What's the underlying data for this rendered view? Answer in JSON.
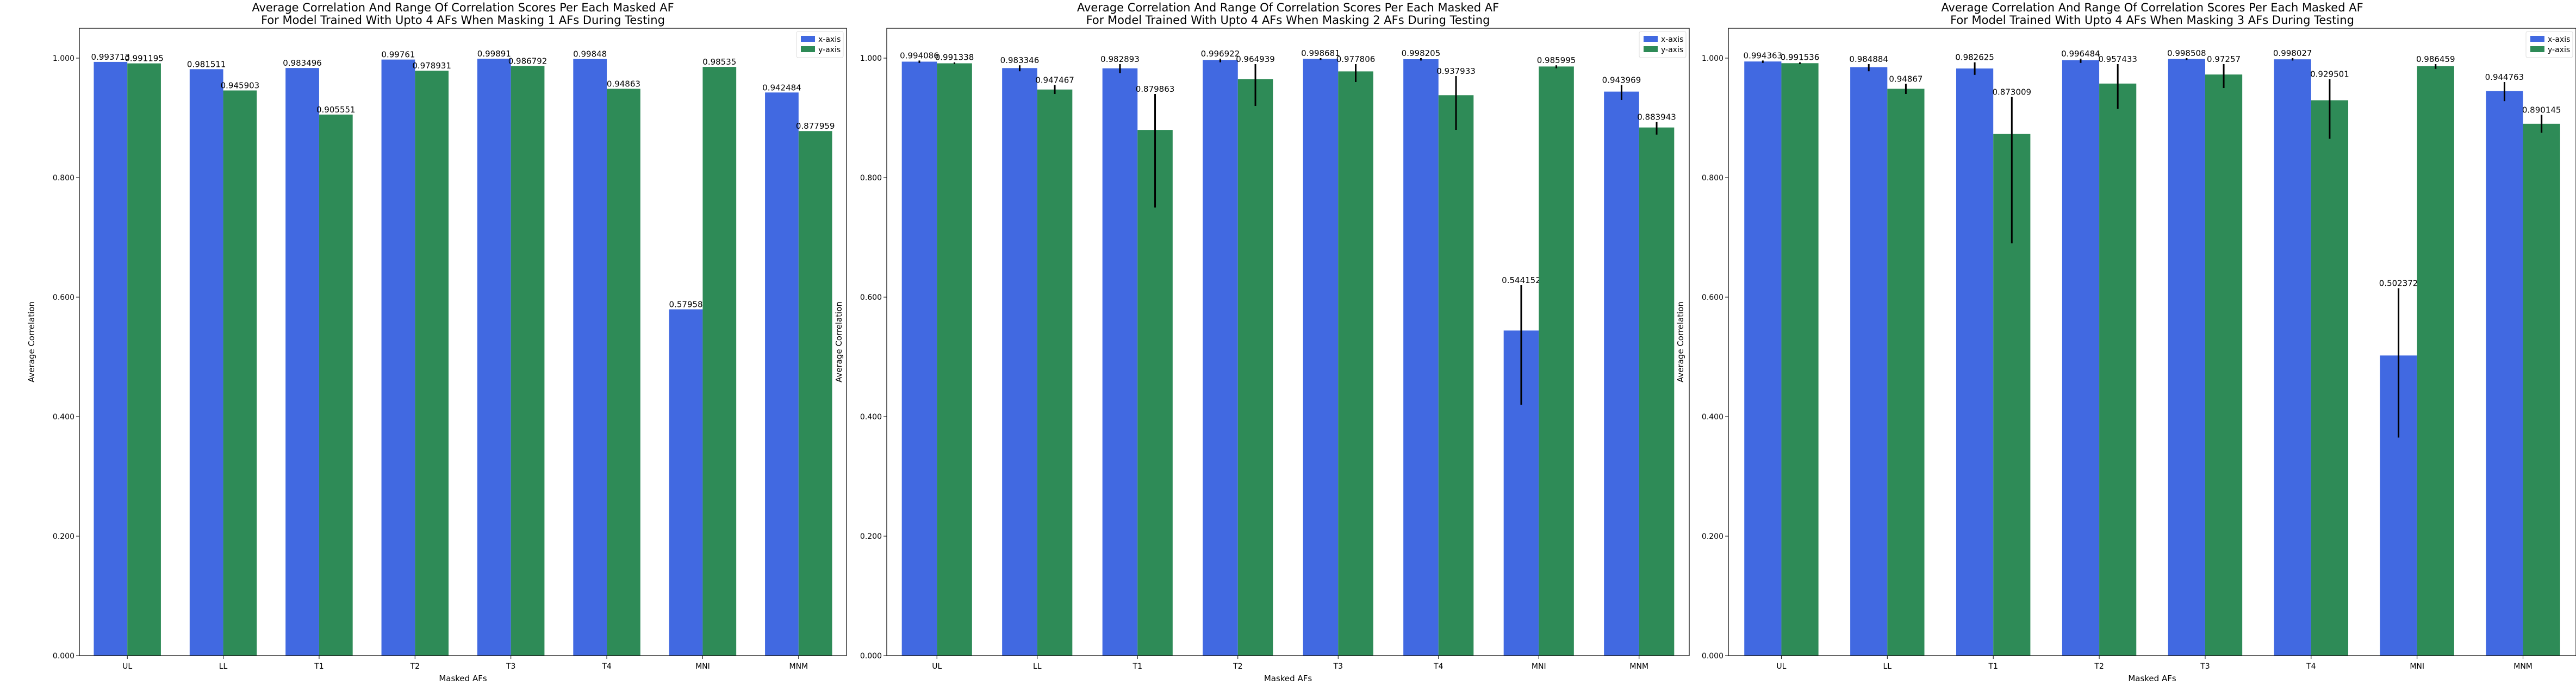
{
  "page": {
    "background": "#ffffff"
  },
  "colors": {
    "x_axis": "#4169e1",
    "y_axis": "#2e8b57",
    "error_bar": "#000000"
  },
  "chart_data": [
    {
      "type": "bar",
      "title": "Average Correlation And Range Of Correlation Scores Per Each Masked AF",
      "subtitle": "For Model Trained With Upto 4 AFs When Masking 1 AFs During Testing",
      "xlabel": "Masked AFs",
      "ylabel": "Average Correlation",
      "ylim": [
        0,
        1.05
      ],
      "yticks": [
        0,
        0.2,
        0.4,
        0.6,
        0.8,
        1.0
      ],
      "ytick_labels": [
        "0.000",
        "0.200",
        "0.400",
        "0.600",
        "0.800",
        "1.000"
      ],
      "categories": [
        "UL",
        "LL",
        "T1",
        "T2",
        "T3",
        "T4",
        "MNI",
        "MNM"
      ],
      "legend": "top-right",
      "grid": false,
      "series": [
        {
          "name": "x-axis",
          "color": "#4169e1",
          "values": [
            0.993713,
            0.981511,
            0.983496,
            0.99761,
            0.99891,
            0.99848,
            0.57958,
            0.942484
          ],
          "labels": [
            "0.993713",
            "0.981511",
            "0.983496",
            "0.99761",
            "0.99891",
            "0.99848",
            "0.57958",
            "0.942484"
          ],
          "err_low": [
            0.993713,
            0.981511,
            0.983496,
            0.99761,
            0.99891,
            0.99848,
            0.57958,
            0.942484
          ],
          "err_high": [
            0.993713,
            0.981511,
            0.983496,
            0.99761,
            0.99891,
            0.99848,
            0.57958,
            0.942484
          ]
        },
        {
          "name": "y-axis",
          "color": "#2e8b57",
          "values": [
            0.991195,
            0.945903,
            0.905551,
            0.978931,
            0.986792,
            0.94863,
            0.98535,
            0.877959
          ],
          "labels": [
            "0.991195",
            "0.945903",
            "0.905551",
            "0.978931",
            "0.986792",
            "0.94863",
            "0.98535",
            "0.877959"
          ],
          "err_low": [
            0.991195,
            0.945903,
            0.905551,
            0.978931,
            0.986792,
            0.94863,
            0.98535,
            0.877959
          ],
          "err_high": [
            0.991195,
            0.945903,
            0.905551,
            0.978931,
            0.986792,
            0.94863,
            0.98535,
            0.877959
          ]
        }
      ]
    },
    {
      "type": "bar",
      "title": "Average Correlation And Range Of Correlation Scores Per Each Masked AF",
      "subtitle": "For Model Trained With Upto 4 AFs When Masking 2 AFs During Testing",
      "xlabel": "Masked AFs",
      "ylabel": "Average Correlation",
      "ylim": [
        0,
        1.05
      ],
      "yticks": [
        0,
        0.2,
        0.4,
        0.6,
        0.8,
        1.0
      ],
      "ytick_labels": [
        "0.000",
        "0.200",
        "0.400",
        "0.600",
        "0.800",
        "1.000"
      ],
      "categories": [
        "UL",
        "LL",
        "T1",
        "T2",
        "T3",
        "T4",
        "MNI",
        "MNM"
      ],
      "legend": "top-right",
      "grid": false,
      "series": [
        {
          "name": "x-axis",
          "color": "#4169e1",
          "values": [
            0.994086,
            0.983346,
            0.982893,
            0.996922,
            0.998681,
            0.998205,
            0.544152,
            0.943969
          ],
          "labels": [
            "0.994086",
            "0.983346",
            "0.982893",
            "0.996922",
            "0.998681",
            "0.998205",
            "0.544152",
            "0.943969"
          ],
          "err_low": [
            0.992,
            0.978,
            0.975,
            0.993,
            0.997,
            0.996,
            0.42,
            0.93
          ],
          "err_high": [
            0.996,
            0.988,
            0.99,
            0.999,
            1.0,
            1.0,
            0.62,
            0.955
          ]
        },
        {
          "name": "y-axis",
          "color": "#2e8b57",
          "values": [
            0.991338,
            0.947467,
            0.879863,
            0.964939,
            0.977806,
            0.937933,
            0.985995,
            0.883943
          ],
          "labels": [
            "0.991338",
            "0.947467",
            "0.879863",
            "0.964939",
            "0.977806",
            "0.937933",
            "0.985995",
            "0.883943"
          ],
          "err_low": [
            0.99,
            0.94,
            0.75,
            0.92,
            0.96,
            0.88,
            0.983,
            0.872
          ],
          "err_high": [
            0.993,
            0.955,
            0.94,
            0.99,
            0.99,
            0.97,
            0.988,
            0.893
          ]
        }
      ]
    },
    {
      "type": "bar",
      "title": "Average Correlation And Range Of Correlation Scores Per Each Masked AF",
      "subtitle": "For Model Trained With Upto 4 AFs When Masking 3 AFs During Testing",
      "xlabel": "Masked AFs",
      "ylabel": "Average Correlation",
      "ylim": [
        0,
        1.05
      ],
      "yticks": [
        0,
        0.2,
        0.4,
        0.6,
        0.8,
        1.0
      ],
      "ytick_labels": [
        "0.000",
        "0.200",
        "0.400",
        "0.600",
        "0.800",
        "1.000"
      ],
      "categories": [
        "UL",
        "LL",
        "T1",
        "T2",
        "T3",
        "T4",
        "MNI",
        "MNM"
      ],
      "legend": "top-right",
      "grid": false,
      "series": [
        {
          "name": "x-axis",
          "color": "#4169e1",
          "values": [
            0.994363,
            0.984884,
            0.982625,
            0.996484,
            0.998508,
            0.998027,
            0.502372,
            0.944763
          ],
          "labels": [
            "0.994363",
            "0.984884",
            "0.982625",
            "0.996484",
            "0.998508",
            "0.998027",
            "0.502372",
            "0.944763"
          ],
          "err_low": [
            0.992,
            0.978,
            0.972,
            0.992,
            0.997,
            0.996,
            0.365,
            0.928
          ],
          "err_high": [
            0.996,
            0.99,
            0.993,
            0.999,
            1.0,
            1.0,
            0.615,
            0.96
          ]
        },
        {
          "name": "y-axis",
          "color": "#2e8b57",
          "values": [
            0.991536,
            0.94867,
            0.873009,
            0.957433,
            0.97257,
            0.929501,
            0.986459,
            0.890145
          ],
          "labels": [
            "0.991536",
            "0.94867",
            "0.873009",
            "0.957433",
            "0.97257",
            "0.929501",
            "0.986459",
            "0.890145"
          ],
          "err_low": [
            0.99,
            0.94,
            0.69,
            0.915,
            0.95,
            0.865,
            0.982,
            0.875
          ],
          "err_high": [
            0.993,
            0.957,
            0.935,
            0.99,
            0.99,
            0.965,
            0.99,
            0.905
          ]
        }
      ]
    }
  ]
}
